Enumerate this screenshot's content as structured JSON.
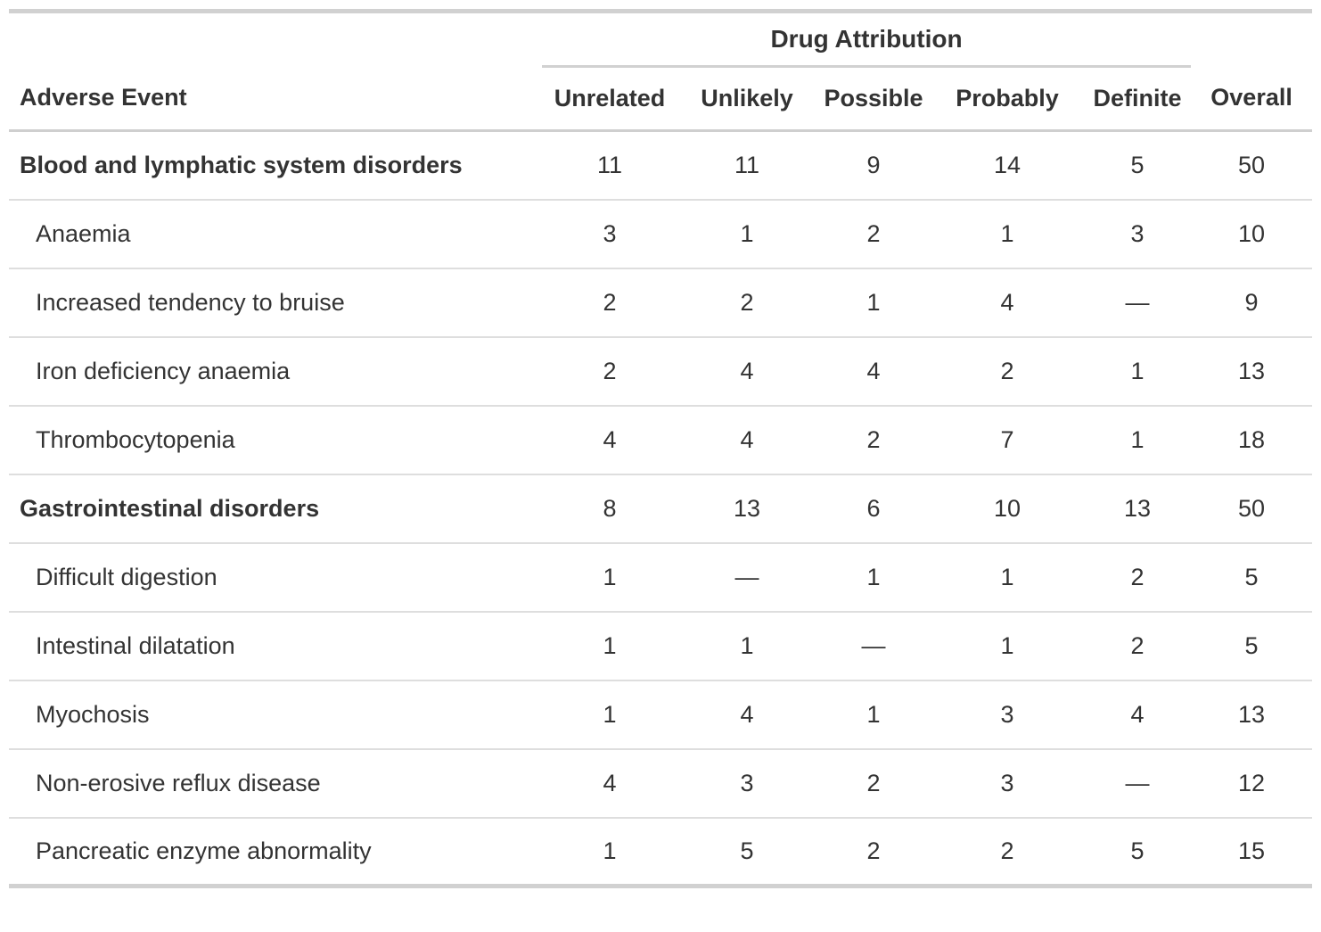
{
  "header": {
    "spanner": "Drug Attribution",
    "stub_label": "Adverse Event",
    "columns": [
      "Unrelated",
      "Unlikely",
      "Possible",
      "Probably",
      "Definite",
      "Overall"
    ]
  },
  "missing_symbol": "—",
  "chart_data": {
    "type": "table",
    "title": "Drug Attribution",
    "spanner": "Drug Attribution",
    "spanner_columns": [
      "Unrelated",
      "Unlikely",
      "Possible",
      "Probably",
      "Definite"
    ],
    "columns": [
      "Adverse Event",
      "Unrelated",
      "Unlikely",
      "Possible",
      "Probably",
      "Definite",
      "Overall"
    ],
    "missing_display": "—",
    "rows": [
      {
        "label": "Blood and lymphatic system disorders",
        "level": "group",
        "values": [
          11,
          11,
          9,
          14,
          5,
          50
        ]
      },
      {
        "label": "Anaemia",
        "level": "sub",
        "values": [
          3,
          1,
          2,
          1,
          3,
          10
        ]
      },
      {
        "label": "Increased tendency to bruise",
        "level": "sub",
        "values": [
          2,
          2,
          1,
          4,
          null,
          9
        ]
      },
      {
        "label": "Iron deficiency anaemia",
        "level": "sub",
        "values": [
          2,
          4,
          4,
          2,
          1,
          13
        ]
      },
      {
        "label": "Thrombocytopenia",
        "level": "sub",
        "values": [
          4,
          4,
          2,
          7,
          1,
          18
        ]
      },
      {
        "label": "Gastrointestinal disorders",
        "level": "group",
        "values": [
          8,
          13,
          6,
          10,
          13,
          50
        ]
      },
      {
        "label": "Difficult digestion",
        "level": "sub",
        "values": [
          1,
          null,
          1,
          1,
          2,
          5
        ]
      },
      {
        "label": "Intestinal dilatation",
        "level": "sub",
        "values": [
          1,
          1,
          null,
          1,
          2,
          5
        ]
      },
      {
        "label": "Myochosis",
        "level": "sub",
        "values": [
          1,
          4,
          1,
          3,
          4,
          13
        ]
      },
      {
        "label": "Non-erosive reflux disease",
        "level": "sub",
        "values": [
          4,
          3,
          2,
          3,
          null,
          12
        ]
      },
      {
        "label": "Pancreatic enzyme abnormality",
        "level": "sub",
        "values": [
          1,
          5,
          2,
          2,
          5,
          15
        ]
      }
    ]
  },
  "colors": {
    "text": "#333333",
    "border_heavy": "#d1d1d1",
    "border_header": "#cfcfcf",
    "border_row": "#dedede",
    "background": "#ffffff"
  }
}
